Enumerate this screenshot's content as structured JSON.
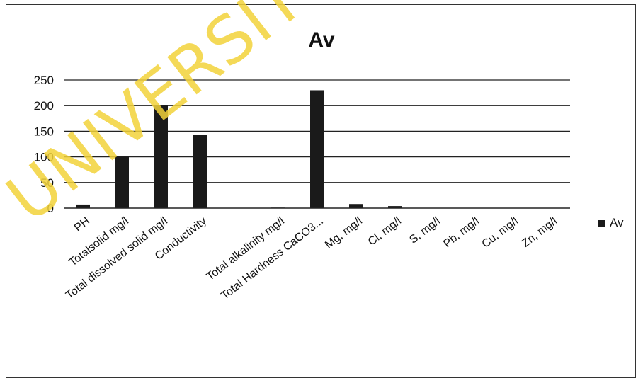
{
  "watermark": "UNIVERSITY OF",
  "chart_data": {
    "type": "bar",
    "title": "Av",
    "categories": [
      "PH",
      "Totalsolid mg/l",
      "Total dissolved solid mg/l",
      "Conductivity",
      "",
      "Total alkalinity mg/l",
      "Total Hardness CaCO3...",
      "Mg, mg/l",
      "Cl, mg/l",
      "S, mg/l",
      "Pb, mg/l",
      "Cu, mg/l",
      "Zn, mg/l"
    ],
    "series": [
      {
        "name": "Av",
        "values": [
          7,
          100,
          200,
          143,
          0,
          1,
          230,
          8,
          4,
          0,
          0,
          0,
          0
        ]
      }
    ],
    "ylim": [
      0,
      250
    ],
    "yticks": [
      0,
      50,
      100,
      150,
      200,
      250
    ],
    "grid": true,
    "legend": "right",
    "bar_color": "#1a1a1a"
  }
}
